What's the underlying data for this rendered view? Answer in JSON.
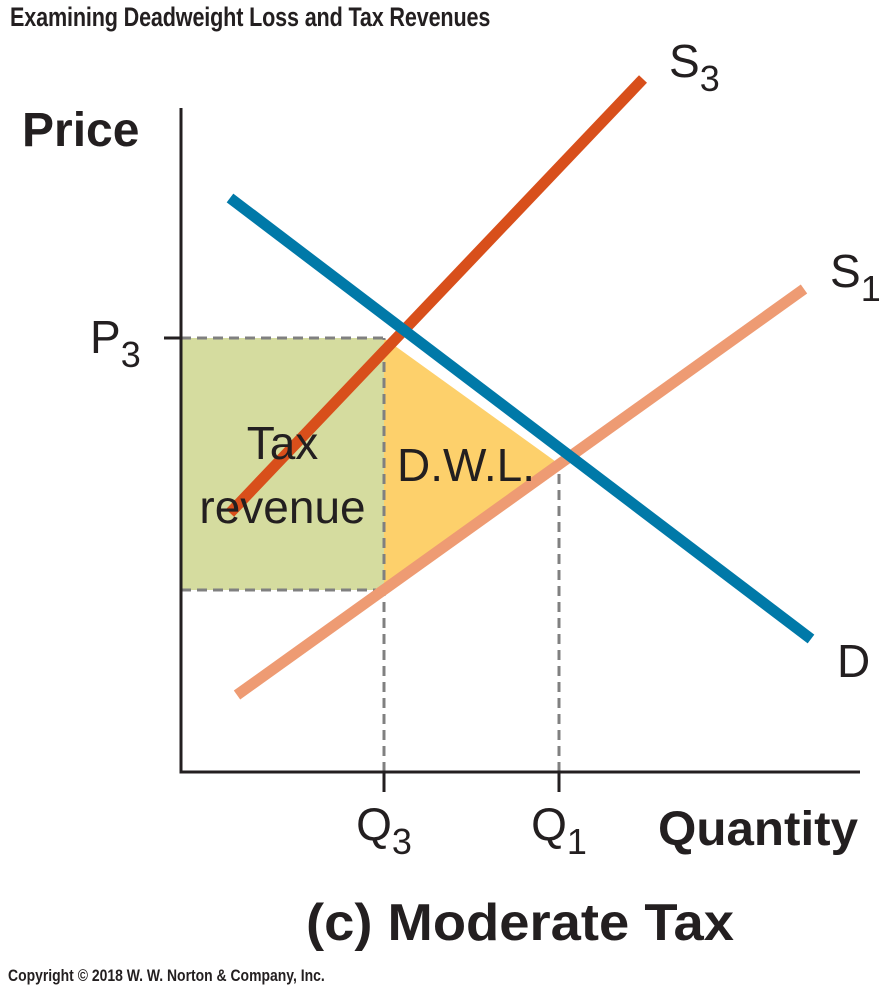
{
  "header": {
    "title": "Examining Deadweight Loss and Tax Revenues"
  },
  "footer": {
    "copyright": "Copyright © 2018 W. W. Norton & Company, Inc."
  },
  "colors": {
    "demand": "#0079a8",
    "supply_taxed": "#d84f1b",
    "supply_original": "#ee9b73",
    "tax_revenue_fill": "#d5dc9f",
    "dwl_fill": "#fdd06b",
    "guide": "#808080",
    "axis": "#231f20"
  },
  "chart_data": {
    "type": "line",
    "title": "(c) Moderate Tax",
    "xlabel": "Quantity",
    "ylabel": "Price",
    "grid": false,
    "axis_numbers_shown": false,
    "xlim": [
      0,
      10
    ],
    "ylim": [
      0,
      10
    ],
    "series": [
      {
        "name": "S",
        "name_sub": "3",
        "role": "supply_taxed",
        "points": [
          [
            0.7,
            3.7
          ],
          [
            6.6,
            9.9
          ]
        ]
      },
      {
        "name": "S",
        "name_sub": "1",
        "role": "supply_original",
        "points": [
          [
            0.8,
            1.1
          ],
          [
            8.9,
            6.9
          ]
        ]
      },
      {
        "name": "D",
        "name_sub": "",
        "role": "demand",
        "points": [
          [
            0.7,
            8.2
          ],
          [
            9.0,
            1.9
          ]
        ]
      }
    ],
    "ticks": {
      "x": [
        {
          "main": "Q",
          "sub": "3",
          "value": 2.9
        },
        {
          "main": "Q",
          "sub": "1",
          "value": 5.4
        }
      ],
      "y": [
        {
          "main": "P",
          "sub": "3",
          "value": 6.2
        }
      ]
    },
    "regions": [
      {
        "label_lines": [
          "Tax",
          "revenue"
        ],
        "role": "tax_revenue",
        "polygon": [
          [
            0,
            2.6
          ],
          [
            0,
            6.2
          ],
          [
            2.9,
            6.2
          ],
          [
            2.9,
            2.6
          ]
        ]
      },
      {
        "label_lines": [
          "D.W.L."
        ],
        "role": "dwl",
        "polygon": [
          [
            2.9,
            2.6
          ],
          [
            2.9,
            6.2
          ],
          [
            5.4,
            4.4
          ]
        ]
      }
    ],
    "guides": [
      {
        "from": [
          0,
          6.2
        ],
        "to": [
          2.9,
          6.2
        ]
      },
      {
        "from": [
          0,
          2.6
        ],
        "to": [
          2.9,
          2.6
        ]
      },
      {
        "from": [
          2.9,
          0
        ],
        "to": [
          2.9,
          6.2
        ]
      },
      {
        "from": [
          5.4,
          0
        ],
        "to": [
          5.4,
          4.4
        ]
      }
    ]
  }
}
